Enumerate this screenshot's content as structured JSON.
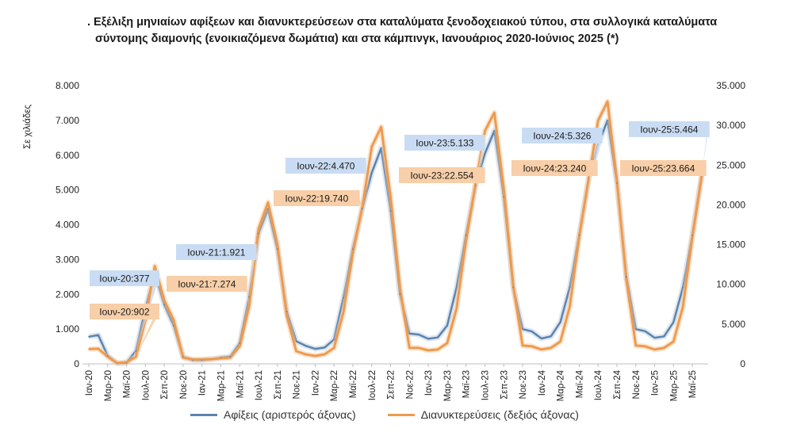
{
  "title": {
    "line1": ". Εξέλιξη μηνιαίων αφίξεων και διανυκτερεύσεων στα καταλύματα ξενοδοχειακού τύπου, στα συλλογικά καταλύματα",
    "line2": "σύντομης διαμονής (ενοικιαζόμενα δωμάτια) και στα κάμπινγκ, Ιανουάριος 2020-Ιούνιος 2025 (*)"
  },
  "colors": {
    "arrivals": "#5b84b1",
    "nights": "#ef9a4d",
    "arrivals_label_bg": "#c9dcf3",
    "nights_label_bg": "#f8cfa8"
  },
  "chart_data": {
    "type": "line",
    "ylabel": "Σε χιλιάδες",
    "y_left": {
      "ticks": [
        "0",
        "1.000",
        "2.000",
        "3.000",
        "4.000",
        "5.000",
        "6.000",
        "7.000",
        "8.000"
      ],
      "range": [
        0,
        8000
      ]
    },
    "y_right": {
      "ticks": [
        "0",
        "5.000",
        "10.000",
        "15.000",
        "20.000",
        "25.000",
        "30.000",
        "35.000"
      ],
      "range": [
        0,
        35000
      ]
    },
    "x_tick_labels": [
      "Ιαν-20",
      "Μαρ-20",
      "Μαϊ-20",
      "Ιουλ-20",
      "Σεπ-20",
      "Νοε-20",
      "Ιαν-21",
      "Μαρ-21",
      "Μαϊ-21",
      "Ιουλ-21",
      "Σεπ-21",
      "Νοε-21",
      "Ιαν-22",
      "Μαρ-22",
      "Μαϊ-22",
      "Ιουλ-22",
      "Σεπ-22",
      "Νοε-22",
      "Ιαν-23",
      "Μαρ-23",
      "Μαϊ-23",
      "Ιουλ-23",
      "Σεπ-23",
      "Νοε-23",
      "Ιαν-24",
      "Μαρ-24",
      "Μαϊ-24",
      "Ιουλ-24",
      "Σεπ-24",
      "Νοε-24",
      "Ιαν-25",
      "Μαρ-25",
      "Μαϊ-25"
    ],
    "grid": false,
    "legend_position": "bottom",
    "series": [
      {
        "name": "Αφίξεις (αριστερός άξονας)",
        "axis": "left",
        "values": [
          780,
          830,
          230,
          20,
          30,
          377,
          1600,
          2600,
          1700,
          1100,
          200,
          110,
          110,
          130,
          180,
          210,
          600,
          1921,
          3750,
          4450,
          3300,
          1500,
          650,
          520,
          430,
          470,
          700,
          1900,
          3300,
          4470,
          5500,
          6200,
          4400,
          2000,
          870,
          840,
          720,
          760,
          1100,
          2200,
          3700,
          5133,
          6050,
          6700,
          4800,
          2200,
          1000,
          930,
          730,
          790,
          1200,
          2200,
          3700,
          5326,
          6300,
          7000,
          5200,
          2500,
          1000,
          940,
          750,
          790,
          1200,
          2200,
          3700,
          5464
        ]
      },
      {
        "name": "Διανυκτερεύσεις (δεξιός άξονας)",
        "axis": "right",
        "values": [
          1850,
          1900,
          900,
          100,
          200,
          902,
          5500,
          12300,
          8000,
          5500,
          800,
          550,
          560,
          600,
          700,
          800,
          2200,
          7274,
          17000,
          20300,
          15000,
          6000,
          1600,
          1200,
          1000,
          1200,
          2000,
          6500,
          14000,
          19740,
          27300,
          29800,
          21000,
          9500,
          2000,
          2000,
          1700,
          1800,
          2600,
          7000,
          15500,
          22554,
          29300,
          31600,
          22000,
          9800,
          2300,
          2200,
          1800,
          2000,
          2800,
          7200,
          16000,
          23240,
          30600,
          33000,
          23000,
          10600,
          2300,
          2200,
          1800,
          2000,
          2800,
          7200,
          16000,
          23664
        ]
      }
    ],
    "annotations": [
      {
        "series": 0,
        "index": 5,
        "text": "Ιουν-20:377"
      },
      {
        "series": 1,
        "index": 5,
        "text": "Ιουν-20:902"
      },
      {
        "series": 0,
        "index": 17,
        "text": "Ιουν-21:1.921"
      },
      {
        "series": 1,
        "index": 17,
        "text": "Ιουν-21:7.274"
      },
      {
        "series": 0,
        "index": 29,
        "text": "Ιουν-22:4.470"
      },
      {
        "series": 1,
        "index": 29,
        "text": "Ιουν-22:19.740"
      },
      {
        "series": 0,
        "index": 41,
        "text": "Ιουν-23:5.133"
      },
      {
        "series": 1,
        "index": 41,
        "text": "Ιουν-23:22.554"
      },
      {
        "series": 0,
        "index": 53,
        "text": "Ιουν-24:5.326"
      },
      {
        "series": 1,
        "index": 53,
        "text": "Ιουν-24:23.240"
      },
      {
        "series": 0,
        "index": 65,
        "text": "Ιουν-25:5.464"
      },
      {
        "series": 1,
        "index": 65,
        "text": "Ιουν-25:23.664"
      }
    ]
  }
}
